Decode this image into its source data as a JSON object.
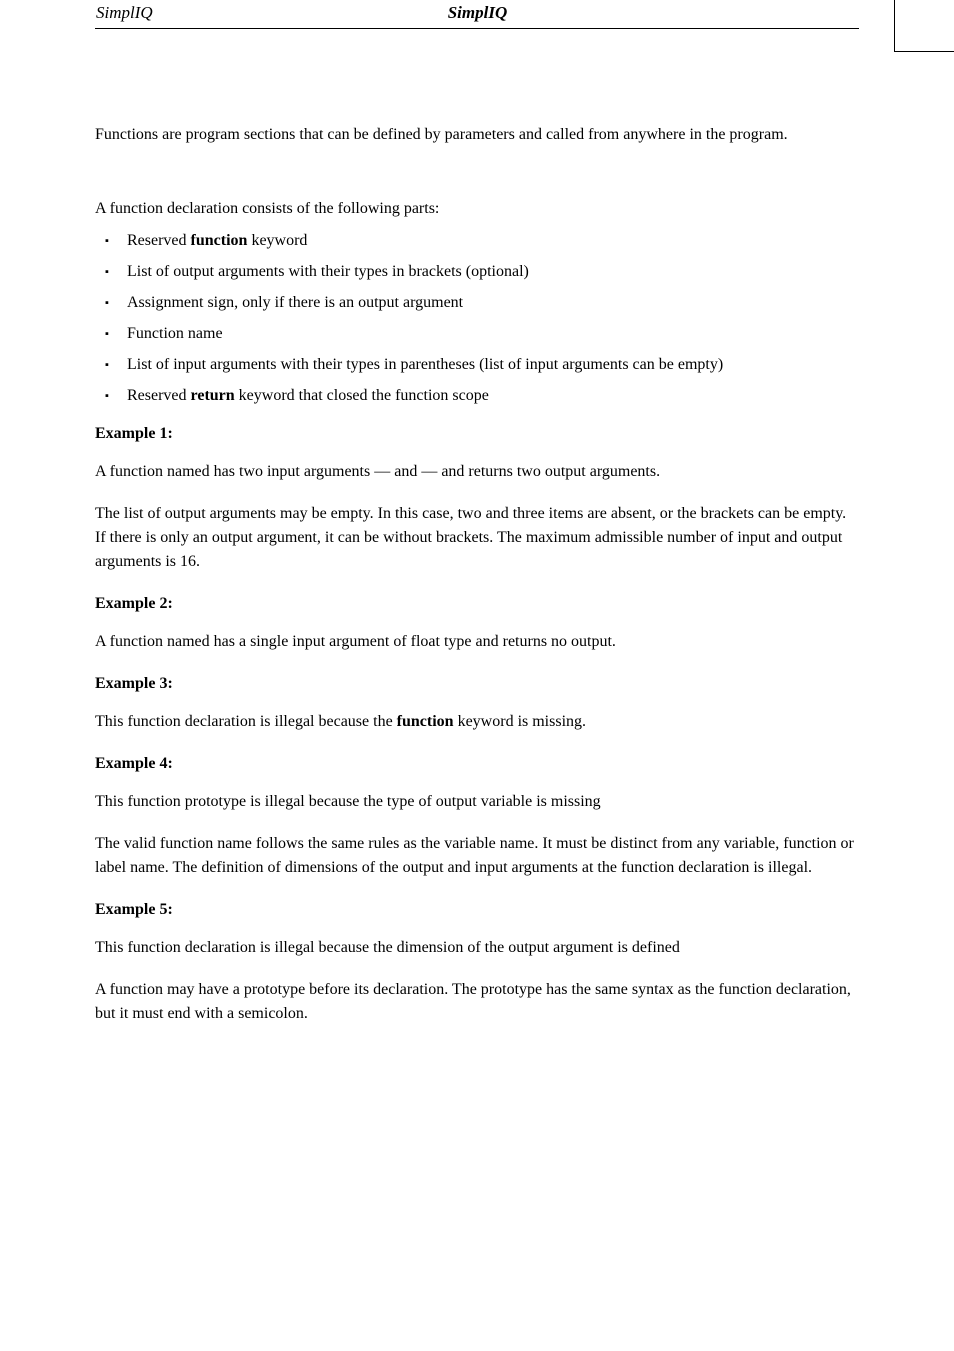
{
  "header": {
    "left": "SimplIQ",
    "center": "SimplIQ"
  },
  "body": {
    "intro": "Functions are program sections that can be defined by parameters and called from anywhere in the program.",
    "decl_intro": "A function declaration consists of the following parts:",
    "bullets": [
      {
        "pre": "Reserved ",
        "bold": "function",
        "post": " keyword"
      },
      {
        "text": "List of output arguments with their types in brackets (optional)"
      },
      {
        "text": "Assignment sign, only if there is an output argument"
      },
      {
        "text": "Function name"
      },
      {
        "text": "List of input arguments with their types in parentheses (list of input arguments can be empty)"
      },
      {
        "pre": "Reserved ",
        "bold": "return",
        "post": " keyword that closed the function scope"
      }
    ],
    "ex1": {
      "heading": "Example 1:",
      "text": "A function named            has two input arguments —        and        — and returns two output arguments.",
      "note": "The list of output arguments may be empty. In this case, two and three items are absent, or the brackets can be empty. If there is only an output argument, it can be without brackets. The maximum admissible number of input and output arguments is 16."
    },
    "ex2": {
      "heading": "Example 2:",
      "text": "A function named            has a single input argument of float type and returns no output."
    },
    "ex3": {
      "heading": "Example 3:",
      "pre": "This function declaration is illegal because the ",
      "bold": "function",
      "post": " keyword is missing."
    },
    "ex4": {
      "heading": "Example 4:",
      "text": "This function prototype is illegal because the type of output variable is missing",
      "note": "The valid function name follows the same rules as the variable name. It must be distinct from any variable, function or label name. The definition of dimensions of the output and input arguments at the function declaration is illegal."
    },
    "ex5": {
      "heading": "Example 5:",
      "text": "This function declaration is illegal because the dimension of the output argument is defined",
      "note": "A function may have a prototype before its declaration. The prototype has the same syntax as the function declaration, but it must end with a semicolon."
    }
  }
}
